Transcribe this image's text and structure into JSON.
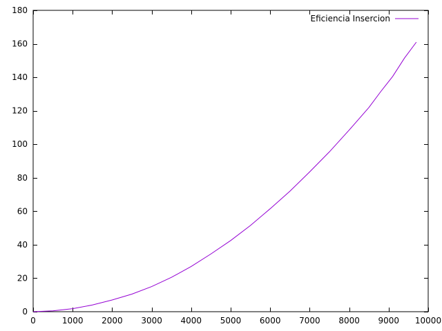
{
  "chart_data": {
    "type": "line",
    "title": "",
    "xlabel": "",
    "ylabel": "",
    "xlim": [
      0,
      10000
    ],
    "ylim": [
      0,
      180
    ],
    "x_ticks": [
      "0",
      "1000",
      "2000",
      "3000",
      "4000",
      "5000",
      "6000",
      "7000",
      "8000",
      "9000",
      "10000"
    ],
    "y_ticks": [
      "0",
      "20",
      "40",
      "60",
      "80",
      "100",
      "120",
      "140",
      "160",
      "180"
    ],
    "legend_position": "top-right",
    "grid": false,
    "series": [
      {
        "name": "Eficiencia Insercion",
        "color": "#9400d3",
        "x": [
          0,
          500,
          1000,
          1500,
          2000,
          2500,
          3000,
          3500,
          4000,
          4500,
          5000,
          5500,
          6000,
          6500,
          7000,
          7500,
          8000,
          8500,
          8800,
          9100,
          9400,
          9700
        ],
        "y": [
          0,
          0.5,
          1.8,
          4,
          7,
          10.5,
          15,
          20.5,
          27,
          34.5,
          42.5,
          51.5,
          61.5,
          72,
          83.5,
          95.5,
          108.5,
          122,
          131.5,
          140.5,
          151.5,
          161
        ]
      }
    ]
  }
}
